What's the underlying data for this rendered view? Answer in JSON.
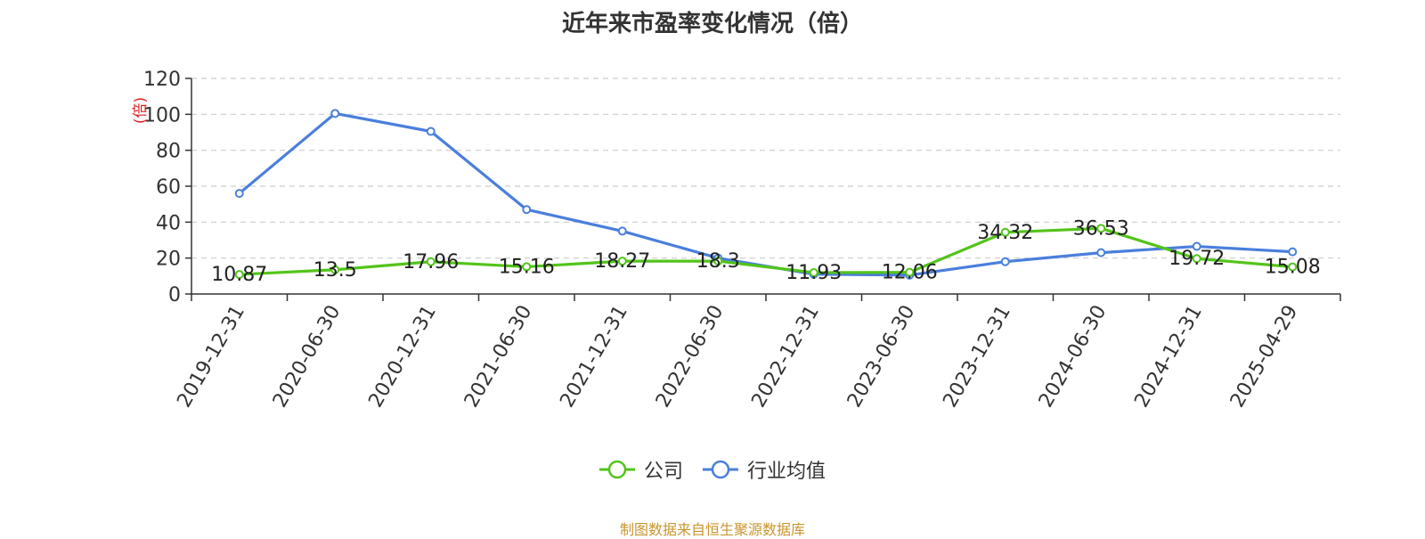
{
  "chart_data": {
    "type": "line",
    "title": "近年来市盈率变化情况（倍）",
    "ylabel": "(倍)",
    "xlabel": "",
    "ylim": [
      0,
      120
    ],
    "yticks": [
      0,
      20,
      40,
      60,
      80,
      100,
      120
    ],
    "grid": true,
    "legend_position": "bottom",
    "categories": [
      "2019-12-31",
      "2020-06-30",
      "2020-12-31",
      "2021-06-30",
      "2021-12-31",
      "2022-06-30",
      "2022-12-31",
      "2023-06-30",
      "2023-12-31",
      "2024-06-30",
      "2024-12-31",
      "2025-04-29"
    ],
    "series": [
      {
        "name": "公司",
        "color": "#52c41a",
        "values": [
          10.87,
          13.5,
          17.96,
          15.16,
          18.27,
          18.3,
          11.93,
          12.06,
          34.32,
          36.53,
          19.72,
          15.08
        ],
        "labels": [
          "10.87",
          "13.5",
          "17.96",
          "15.16",
          "18.27",
          "18.3",
          "11.93",
          "12.06",
          "34.32",
          "36.53",
          "19.72",
          "15.08"
        ]
      },
      {
        "name": "行业均值",
        "color": "#4a7fdc",
        "values": [
          56,
          100.5,
          90.5,
          47,
          35,
          20,
          11,
          10.5,
          18,
          23,
          26.5,
          23.5
        ]
      }
    ]
  },
  "footer": {
    "source": "制图数据来自恒生聚源数据库"
  }
}
